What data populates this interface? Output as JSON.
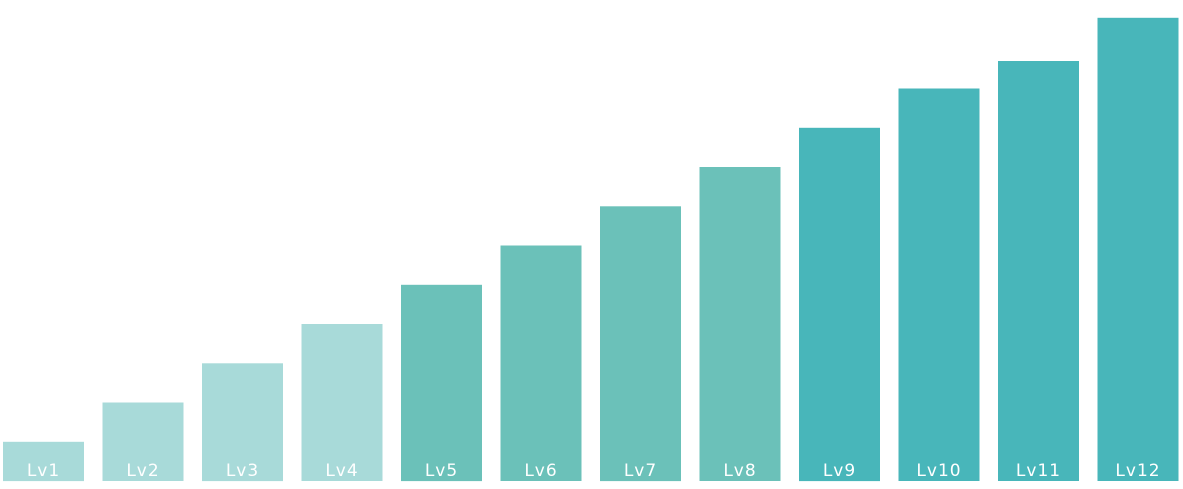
{
  "chart_data": {
    "type": "bar",
    "categories": [
      "Lv1",
      "Lv2",
      "Lv3",
      "Lv4",
      "Lv5",
      "Lv6",
      "Lv7",
      "Lv8",
      "Lv9",
      "Lv10",
      "Lv11",
      "Lv12"
    ],
    "values": [
      1,
      2,
      3,
      4,
      5,
      6,
      7,
      8,
      9,
      10,
      10.7,
      11.8
    ],
    "ylim": [
      0,
      12
    ],
    "colors": [
      "#a8dad9",
      "#a8dad9",
      "#a8dad9",
      "#a8dad9",
      "#6bc1b9",
      "#6bc1b9",
      "#6bc1b9",
      "#6bc1b9",
      "#48b6ba",
      "#48b6ba",
      "#48b6ba",
      "#48b6ba"
    ],
    "grid": false,
    "legend": "none"
  }
}
